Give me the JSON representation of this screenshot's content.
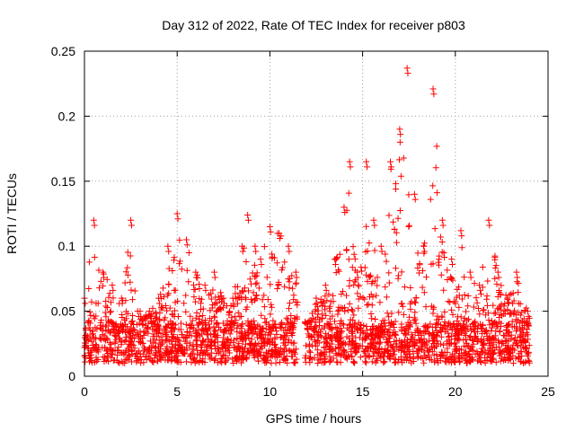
{
  "chart_data": {
    "type": "scatter",
    "title": "Day 312 of 2022, Rate Of TEC Index for receiver p803",
    "xlabel": "GPS time / hours",
    "ylabel": "ROTI / TECUs",
    "xlim": [
      0,
      25
    ],
    "ylim": [
      0,
      0.25
    ],
    "x_ticks": [
      "0",
      "5",
      "10",
      "15",
      "20",
      "25"
    ],
    "y_ticks": [
      "0",
      "0.05",
      "0.1",
      "0.15",
      "0.2",
      "0.25"
    ],
    "x_tick_values": [
      0,
      5,
      10,
      15,
      20,
      25
    ],
    "y_tick_values": [
      0,
      0.05,
      0.1,
      0.15,
      0.2,
      0.25
    ],
    "grid": true,
    "marker": "+",
    "series_color": "#ff0000",
    "data_gap_hours": [
      11.5,
      11.9
    ],
    "envelope": [
      {
        "x": 0.0,
        "y": 0.06
      },
      {
        "x": 0.5,
        "y": 0.12
      },
      {
        "x": 1.0,
        "y": 0.08
      },
      {
        "x": 1.5,
        "y": 0.07
      },
      {
        "x": 2.0,
        "y": 0.06
      },
      {
        "x": 2.5,
        "y": 0.12
      },
      {
        "x": 3.0,
        "y": 0.05
      },
      {
        "x": 3.5,
        "y": 0.05
      },
      {
        "x": 4.0,
        "y": 0.06
      },
      {
        "x": 4.5,
        "y": 0.1
      },
      {
        "x": 5.0,
        "y": 0.125
      },
      {
        "x": 5.5,
        "y": 0.105
      },
      {
        "x": 6.0,
        "y": 0.08
      },
      {
        "x": 6.5,
        "y": 0.07
      },
      {
        "x": 7.0,
        "y": 0.08
      },
      {
        "x": 7.5,
        "y": 0.06
      },
      {
        "x": 8.0,
        "y": 0.06
      },
      {
        "x": 8.5,
        "y": 0.1
      },
      {
        "x": 8.8,
        "y": 0.124
      },
      {
        "x": 9.2,
        "y": 0.1
      },
      {
        "x": 9.5,
        "y": 0.09
      },
      {
        "x": 10.0,
        "y": 0.115
      },
      {
        "x": 10.5,
        "y": 0.11
      },
      {
        "x": 11.0,
        "y": 0.1
      },
      {
        "x": 11.4,
        "y": 0.08
      },
      {
        "x": 12.0,
        "y": 0.04
      },
      {
        "x": 12.5,
        "y": 0.06
      },
      {
        "x": 13.0,
        "y": 0.07
      },
      {
        "x": 13.5,
        "y": 0.09
      },
      {
        "x": 14.0,
        "y": 0.13
      },
      {
        "x": 14.3,
        "y": 0.165
      },
      {
        "x": 14.7,
        "y": 0.08
      },
      {
        "x": 15.2,
        "y": 0.165
      },
      {
        "x": 15.6,
        "y": 0.12
      },
      {
        "x": 16.0,
        "y": 0.1
      },
      {
        "x": 16.5,
        "y": 0.165
      },
      {
        "x": 17.0,
        "y": 0.19
      },
      {
        "x": 17.4,
        "y": 0.237
      },
      {
        "x": 17.8,
        "y": 0.14
      },
      {
        "x": 18.3,
        "y": 0.1
      },
      {
        "x": 18.8,
        "y": 0.221
      },
      {
        "x": 19.3,
        "y": 0.12
      },
      {
        "x": 19.8,
        "y": 0.09
      },
      {
        "x": 20.3,
        "y": 0.112
      },
      {
        "x": 20.8,
        "y": 0.08
      },
      {
        "x": 21.3,
        "y": 0.07
      },
      {
        "x": 21.8,
        "y": 0.12
      },
      {
        "x": 22.3,
        "y": 0.08
      },
      {
        "x": 22.8,
        "y": 0.06
      },
      {
        "x": 23.3,
        "y": 0.08
      },
      {
        "x": 23.9,
        "y": 0.05
      }
    ],
    "baseline_range": [
      0.01,
      0.04
    ]
  }
}
